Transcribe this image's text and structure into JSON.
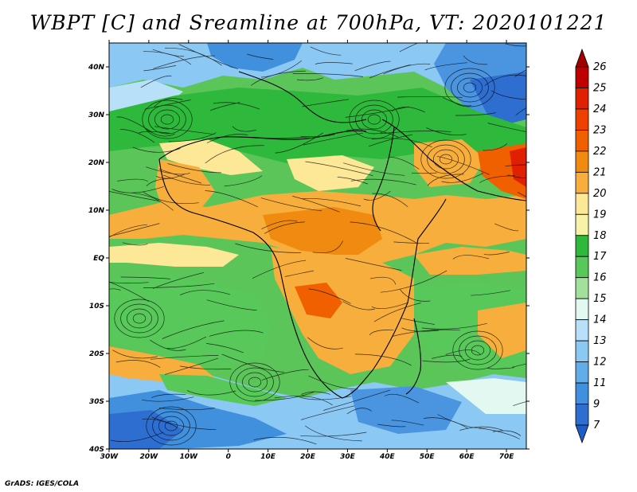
{
  "title": "WBPT [C] and Sreamline at 700hPa, VT: 2020101221",
  "credit": "GrADS: IGES/COLA",
  "map": {
    "lat_labels": [
      "40N",
      "30N",
      "20N",
      "10N",
      "EQ",
      "10S",
      "20S",
      "30S",
      "40S"
    ],
    "lon_labels": [
      "30W",
      "20W",
      "10W",
      "0",
      "10E",
      "20E",
      "30E",
      "40E",
      "50E",
      "60E",
      "70E"
    ],
    "lat_range": [
      -40,
      45
    ],
    "lon_range": [
      -30,
      75
    ],
    "field": "WBPT",
    "units": "C",
    "level": "700hPa",
    "valid_time": "2020101221"
  },
  "colorbar": {
    "labels": [
      "26",
      "25",
      "24",
      "23",
      "22",
      "21",
      "20",
      "19",
      "18",
      "17",
      "16",
      "15",
      "14",
      "13",
      "12",
      "11",
      "9",
      "7"
    ],
    "colors": [
      "#a00000",
      "#c00000",
      "#e02000",
      "#f04000",
      "#f06000",
      "#f08a10",
      "#f8ae3c",
      "#fce896",
      "#f8f2a8",
      "#2eb83c",
      "#58c85a",
      "#a2e09c",
      "#e2f8f0",
      "#b8e0f8",
      "#8cc8f4",
      "#62acea",
      "#4090de",
      "#2e6ed0",
      "#1e5cc8"
    ]
  }
}
